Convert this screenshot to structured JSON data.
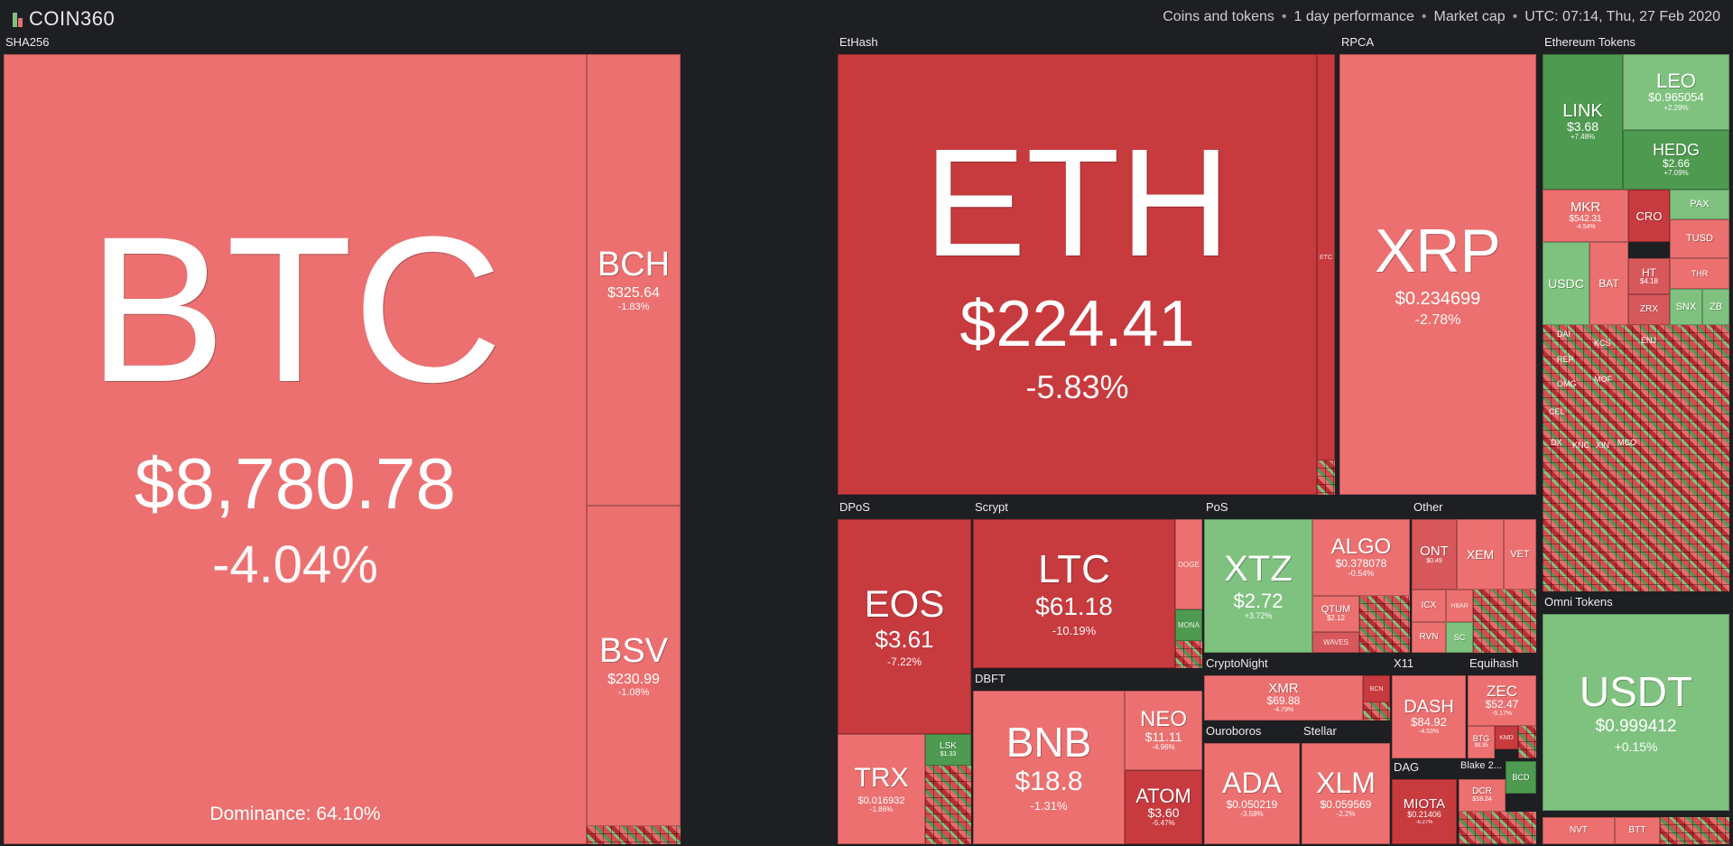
{
  "brand": "COIN360",
  "header": {
    "items": [
      "Coins and tokens",
      "1 day performance",
      "Market cap",
      "UTC: 07:14, Thu, 27 Feb 2020"
    ],
    "separator": "•"
  },
  "groups": {
    "sha256": "SHA256",
    "ethash": "EtHash",
    "rpca": "RPCA",
    "eth_tokens": "Ethereum Tokens",
    "dpos": "DPoS",
    "scrypt": "Scrypt",
    "pos": "PoS",
    "other": "Other",
    "dbft": "DBFT",
    "cryptonight": "CryptoNight",
    "x11": "X11",
    "equihash": "Equihash",
    "ouroboros": "Ouroboros",
    "stellar": "Stellar",
    "dag": "DAG",
    "blake2": "Blake 2...",
    "omni": "Omni Tokens"
  },
  "coins": {
    "btc": {
      "sym": "BTC",
      "price": "$8,780.78",
      "change": "-4.04%"
    },
    "dominance": "Dominance: 64.10%",
    "bch": {
      "sym": "BCH",
      "price": "$325.64",
      "change": "-1.83%"
    },
    "bsv": {
      "sym": "BSV",
      "price": "$230.99",
      "change": "-1.08%"
    },
    "eth": {
      "sym": "ETH",
      "price": "$224.41",
      "change": "-5.83%"
    },
    "etc": {
      "sym": "ETC"
    },
    "xrp": {
      "sym": "XRP",
      "price": "$0.234699",
      "change": "-2.78%"
    },
    "link": {
      "sym": "LINK",
      "price": "$3.68",
      "change": "+7.48%"
    },
    "leo": {
      "sym": "LEO",
      "price": "$0.965054",
      "change": "+2.29%"
    },
    "hedg": {
      "sym": "HEDG",
      "price": "$2.66",
      "change": "+7.09%"
    },
    "mkr": {
      "sym": "MKR",
      "price": "$542.31",
      "change": "-4.54%"
    },
    "cro": {
      "sym": "CRO"
    },
    "pax": {
      "sym": "PAX"
    },
    "tusd": {
      "sym": "TUSD"
    },
    "usdc": {
      "sym": "USDC"
    },
    "bat": {
      "sym": "BAT"
    },
    "ht": {
      "sym": "HT",
      "price": "$4.18"
    },
    "thr": {
      "sym": "THR"
    },
    "zrx": {
      "sym": "ZRX"
    },
    "snx": {
      "sym": "SNX"
    },
    "zb": {
      "sym": "ZB"
    },
    "eos": {
      "sym": "EOS",
      "price": "$3.61",
      "change": "-7.22%"
    },
    "trx": {
      "sym": "TRX",
      "price": "$0.016932",
      "change": "-1.86%"
    },
    "lsk": {
      "sym": "LSK",
      "price": "$1.33"
    },
    "ltc": {
      "sym": "LTC",
      "price": "$61.18",
      "change": "-10.19%"
    },
    "doge": {
      "sym": "DOGE"
    },
    "mona": {
      "sym": "MONA"
    },
    "xtz": {
      "sym": "XTZ",
      "price": "$2.72",
      "change": "+3.72%"
    },
    "algo": {
      "sym": "ALGO",
      "price": "$0.378078",
      "change": "-0.54%"
    },
    "qtum": {
      "sym": "QTUM",
      "price": "$2.12"
    },
    "waves": {
      "sym": "WAVES"
    },
    "ont": {
      "sym": "ONT",
      "price": "$0.49"
    },
    "xem": {
      "sym": "XEM"
    },
    "vet": {
      "sym": "VET"
    },
    "icx": {
      "sym": "ICX"
    },
    "hbar": {
      "sym": "HBAR"
    },
    "rvn": {
      "sym": "RVN"
    },
    "sc": {
      "sym": "SC"
    },
    "bnb": {
      "sym": "BNB",
      "price": "$18.8",
      "change": "-1.31%"
    },
    "neo": {
      "sym": "NEO",
      "price": "$11.11",
      "change": "-4.96%"
    },
    "atom": {
      "sym": "ATOM",
      "price": "$3.60",
      "change": "-5.47%"
    },
    "xmr": {
      "sym": "XMR",
      "price": "$69.88",
      "change": "-4.79%"
    },
    "bcn": {
      "sym": "BCN"
    },
    "dash": {
      "sym": "DASH",
      "price": "$84.92",
      "change": "-4.53%"
    },
    "zec": {
      "sym": "ZEC",
      "price": "$52.47",
      "change": "-5.17%"
    },
    "btg": {
      "sym": "BTG",
      "price": "$9.35"
    },
    "kmd": {
      "sym": "KMD"
    },
    "ada": {
      "sym": "ADA",
      "price": "$0.050219",
      "change": "-3.58%"
    },
    "xlm": {
      "sym": "XLM",
      "price": "$0.059569",
      "change": "-2.2%"
    },
    "miota": {
      "sym": "MIOTA",
      "price": "$0.21406",
      "change": "-6.27%"
    },
    "dcr": {
      "sym": "DCR",
      "price": "$18.24"
    },
    "bcd": {
      "sym": "BCD"
    },
    "usdt": {
      "sym": "USDT",
      "price": "$0.999412",
      "change": "+0.15%"
    },
    "nvt": {
      "sym": "NVT"
    },
    "btt": {
      "sym": "BTT"
    }
  },
  "small_tokens": [
    "DAI",
    "KCS",
    "REP",
    "OMG",
    "MOF",
    "ENJ",
    "CEL",
    "DX",
    "KNC",
    "XIN",
    "MCO"
  ],
  "colors": {
    "red_light": "#ec7070",
    "red_dark": "#c73a3e",
    "green_light": "#7fc27f",
    "green_dark": "#4e9a50",
    "background": "#1e1f22"
  }
}
